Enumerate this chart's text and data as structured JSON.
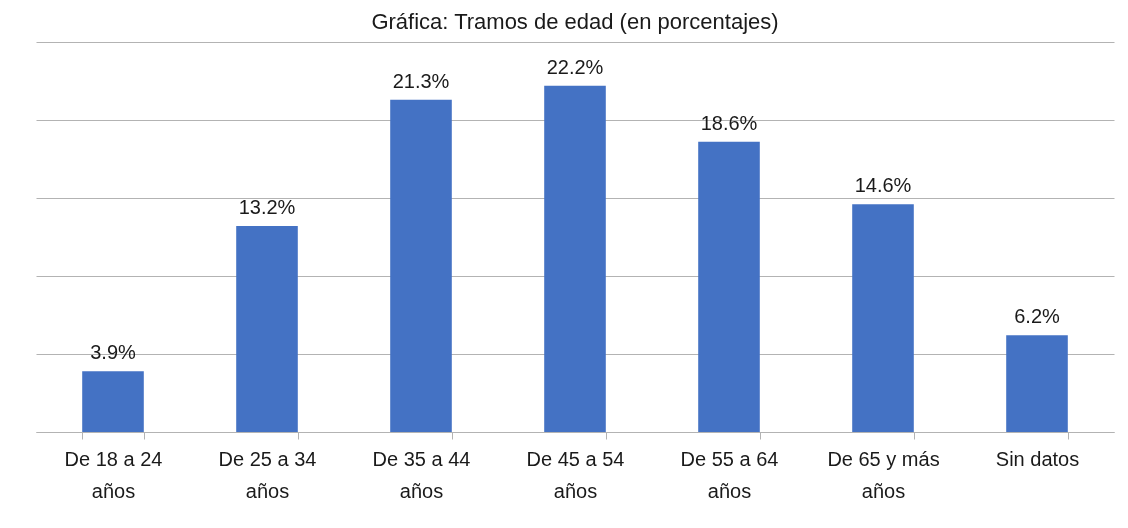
{
  "chart_data": {
    "type": "bar",
    "title": "Gráfica: Tramos de edad (en porcentajes)",
    "categories": [
      "De 18 a 24 años",
      "De 25 a 34 años",
      "De 35 a 44 años",
      "De 45 a 54 años",
      "De 55 a 64 años",
      "De 65 y más años",
      "Sin datos"
    ],
    "values": [
      3.9,
      13.2,
      21.3,
      22.2,
      18.6,
      14.6,
      6.2
    ],
    "value_labels": [
      "3.9%",
      "13.2%",
      "21.3%",
      "22.2%",
      "18.6%",
      "14.6%",
      "6.2%"
    ],
    "color": "#4472c4",
    "ylim": [
      0,
      25
    ],
    "yticks": [
      {
        "value": 0,
        "label": null
      },
      {
        "value": 5,
        "label": null
      },
      {
        "value": 10,
        "label": null
      },
      {
        "value": 15,
        "label": null
      },
      {
        "value": 20,
        "label": null
      },
      {
        "value": 25,
        "label": null
      }
    ],
    "grid": "y",
    "tick_labels": "x"
  }
}
